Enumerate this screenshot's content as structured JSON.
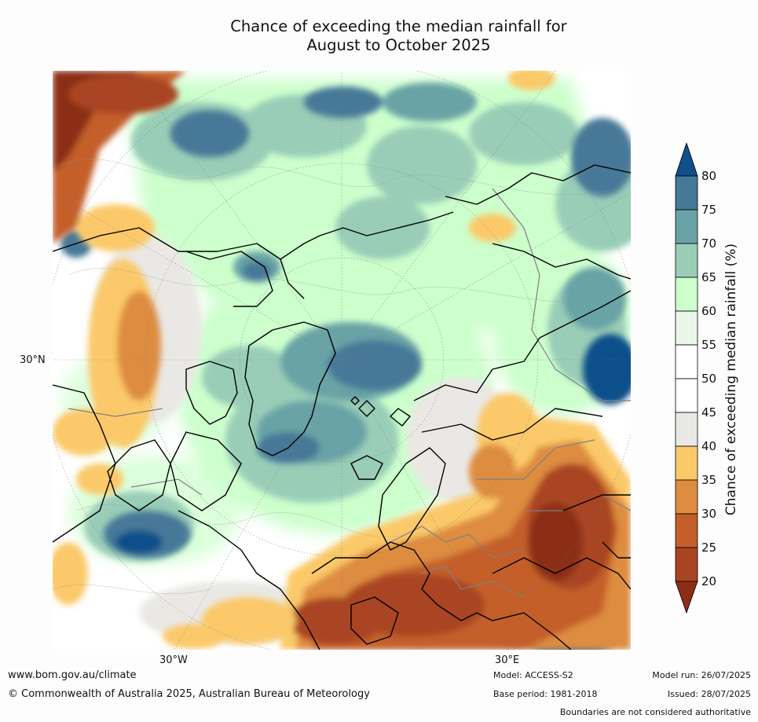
{
  "title_line1": "Chance of exceeding the median rainfall for",
  "title_line2": "August to October 2025",
  "map": {
    "lat_label": "30°N",
    "lon_labels": [
      "30°W",
      "30°E"
    ],
    "colors": {
      "ocean_white": "#ffffff",
      "coast": "#000000",
      "borders": "#808080"
    }
  },
  "colorbar": {
    "title": "Chance of exceeding median rainfall (%)",
    "ticks": [
      "80",
      "75",
      "70",
      "65",
      "60",
      "55",
      "50",
      "45",
      "40",
      "35",
      "30",
      "25",
      "20"
    ],
    "bins": [
      {
        "range": ">80",
        "color": "#0f4f8a"
      },
      {
        "range": "75-80",
        "color": "#467898"
      },
      {
        "range": "70-75",
        "color": "#69a3a6"
      },
      {
        "range": "65-70",
        "color": "#99cdb7"
      },
      {
        "range": "60-65",
        "color": "#ccffcc"
      },
      {
        "range": "55-60",
        "color": "#ebf5ea"
      },
      {
        "range": "50-55",
        "color": "#ffffff"
      },
      {
        "range": "45-50",
        "color": "#ffffff"
      },
      {
        "range": "40-45",
        "color": "#eae8e4"
      },
      {
        "range": "35-40",
        "color": "#fbc969"
      },
      {
        "range": "30-35",
        "color": "#de8c3f"
      },
      {
        "range": "25-30",
        "color": "#c45e2b"
      },
      {
        "range": "20-25",
        "color": "#a94423"
      },
      {
        "range": "<20",
        "color": "#8b2d17"
      }
    ]
  },
  "footer": {
    "website": "www.bom.gov.au/climate",
    "copyright": "© Commonwealth of Australia 2025, Australian Bureau of Meteorology",
    "model": "Model: ACCESS-S2",
    "base_period": "Base period: 1981-2018",
    "model_run": "Model run: 26/07/2025",
    "issued": "Issued: 28/07/2025",
    "disclaimer": "Boundaries are not considered authoritative"
  }
}
